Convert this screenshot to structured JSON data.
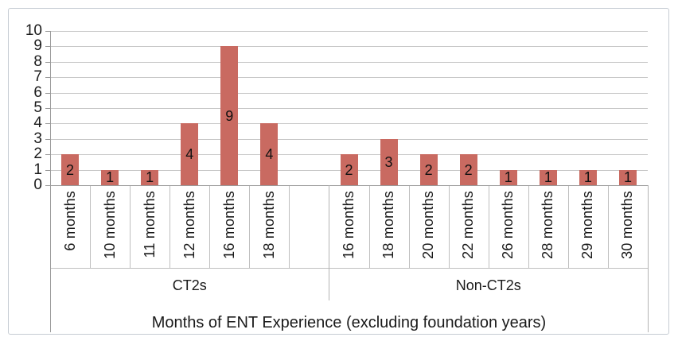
{
  "chart_data": {
    "type": "bar",
    "title": "",
    "xlabel": "Months of ENT Experience (excluding foundation years)",
    "ylabel": "",
    "ylim": [
      0,
      10
    ],
    "yticks": [
      0,
      1,
      2,
      3,
      4,
      5,
      6,
      7,
      8,
      9,
      10
    ],
    "grid": true,
    "legend": "none",
    "bar_color": "#c96a61",
    "data_label_position": "inside-center",
    "groups": [
      {
        "label": "CT2s",
        "categories": [
          "6 months",
          "10 months",
          "11 months",
          "12 months",
          "16 months",
          "18 months",
          ""
        ],
        "values": [
          2,
          1,
          1,
          4,
          9,
          4,
          null
        ]
      },
      {
        "label": "Non-CT2s",
        "categories": [
          "16 months",
          "18 months",
          "20 months",
          "22 months",
          "26 months",
          "28 months",
          "29 months",
          "30 months"
        ],
        "values": [
          2,
          3,
          2,
          2,
          1,
          1,
          1,
          1
        ]
      }
    ]
  }
}
